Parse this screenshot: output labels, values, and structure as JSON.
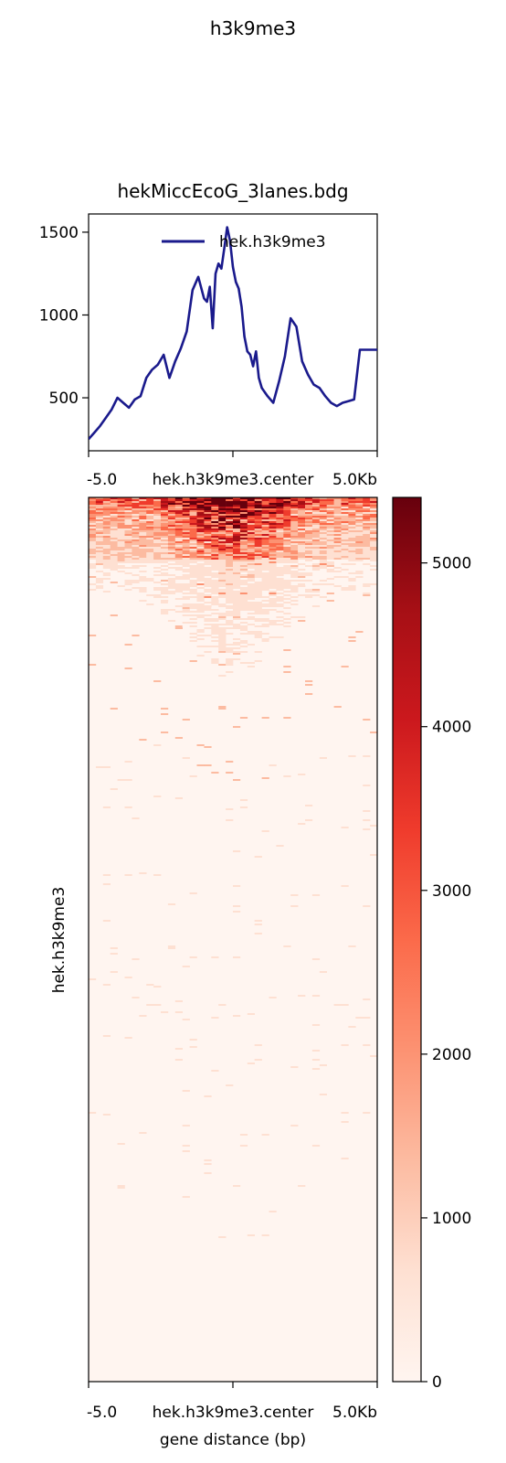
{
  "figure": {
    "suptitle": "h3k9me3"
  },
  "chart_data": [
    {
      "type": "line",
      "title": "hekMiccEcoG_3lanes.bdg",
      "xlabel": "",
      "ylabel": "",
      "x_ticks": [
        "-5.0",
        "hek.h3k9me3.center",
        "5.0Kb"
      ],
      "y_ticks": [
        500,
        1000,
        1500
      ],
      "xlim": [
        -5000,
        5000
      ],
      "ylim": [
        180,
        1610
      ],
      "legend": {
        "position": "top-right"
      },
      "series": [
        {
          "name": "hek.h3k9me3",
          "color": "#1a1a8c",
          "x": [
            -5000,
            -4800,
            -4600,
            -4400,
            -4200,
            -4000,
            -3800,
            -3600,
            -3400,
            -3200,
            -3000,
            -2800,
            -2600,
            -2400,
            -2200,
            -2000,
            -1800,
            -1600,
            -1400,
            -1200,
            -1000,
            -900,
            -800,
            -700,
            -600,
            -500,
            -400,
            -300,
            -200,
            -100,
            0,
            100,
            200,
            300,
            400,
            500,
            600,
            700,
            800,
            900,
            1000,
            1200,
            1400,
            1600,
            1800,
            2000,
            2200,
            2400,
            2600,
            2800,
            3000,
            3200,
            3400,
            3600,
            3800,
            4000,
            4200,
            4400,
            4600,
            4800,
            4950,
            5000
          ],
          "y": [
            250,
            290,
            330,
            380,
            430,
            500,
            470,
            440,
            490,
            510,
            620,
            670,
            700,
            760,
            620,
            720,
            800,
            900,
            1150,
            1230,
            1100,
            1080,
            1170,
            920,
            1250,
            1310,
            1280,
            1400,
            1530,
            1450,
            1290,
            1200,
            1160,
            1050,
            870,
            780,
            760,
            690,
            780,
            620,
            560,
            510,
            470,
            600,
            750,
            980,
            930,
            720,
            640,
            580,
            560,
            510,
            470,
            450,
            470,
            480,
            490,
            790,
            790,
            790,
            790,
            790
          ]
        }
      ]
    },
    {
      "type": "heatmap",
      "title": "",
      "xlabel": "gene distance (bp)",
      "ylabel": "hek.h3k9me3",
      "x_ticks": [
        "-5.0",
        "hek.h3k9me3.center",
        "5.0Kb"
      ],
      "colormap": "Reds",
      "colorbar": {
        "min": 0,
        "max": 5400,
        "ticks": [
          0,
          1000,
          2000,
          3000,
          4000,
          5000
        ]
      },
      "summary": "Rows sorted by signal; strongest signal (up to ~5400) in top ~6% of rows concentrated at center, fading to near 0 for remaining rows"
    }
  ]
}
